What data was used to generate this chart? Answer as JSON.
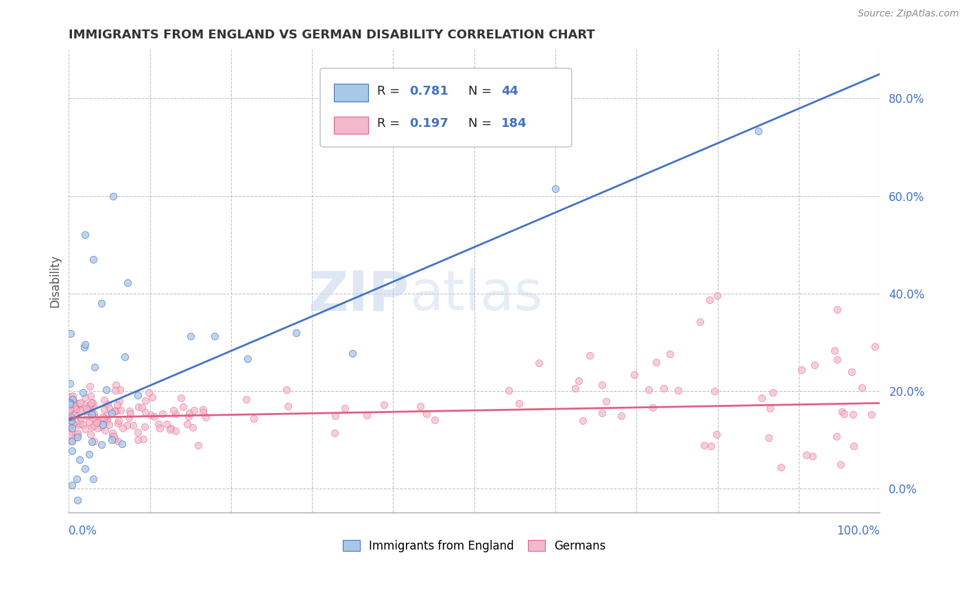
{
  "title": "IMMIGRANTS FROM ENGLAND VS GERMAN DISABILITY CORRELATION CHART",
  "source": "Source: ZipAtlas.com",
  "ylabel": "Disability",
  "legend_entry1_label": "Immigrants from England",
  "legend_entry2_label": "Germans",
  "blue_color": "#A8C8E8",
  "pink_color": "#F4B8CC",
  "blue_line_color": "#4472C4",
  "pink_line_color": "#E06080",
  "watermark_zip": "ZIP",
  "watermark_atlas": "atlas",
  "background_color": "#FFFFFF",
  "grid_color": "#C0C0D0",
  "yticks": [
    0.0,
    0.2,
    0.4,
    0.6,
    0.8
  ],
  "ytick_labels": [
    "0.0%",
    "20.0%",
    "40.0%",
    "60.0%",
    "80.0%"
  ],
  "title_color": "#333333",
  "axis_label_color": "#555555",
  "legend_value_color": "#4472C4",
  "blue_trend": [
    0.14,
    0.85
  ],
  "pink_trend": [
    0.145,
    0.175
  ]
}
